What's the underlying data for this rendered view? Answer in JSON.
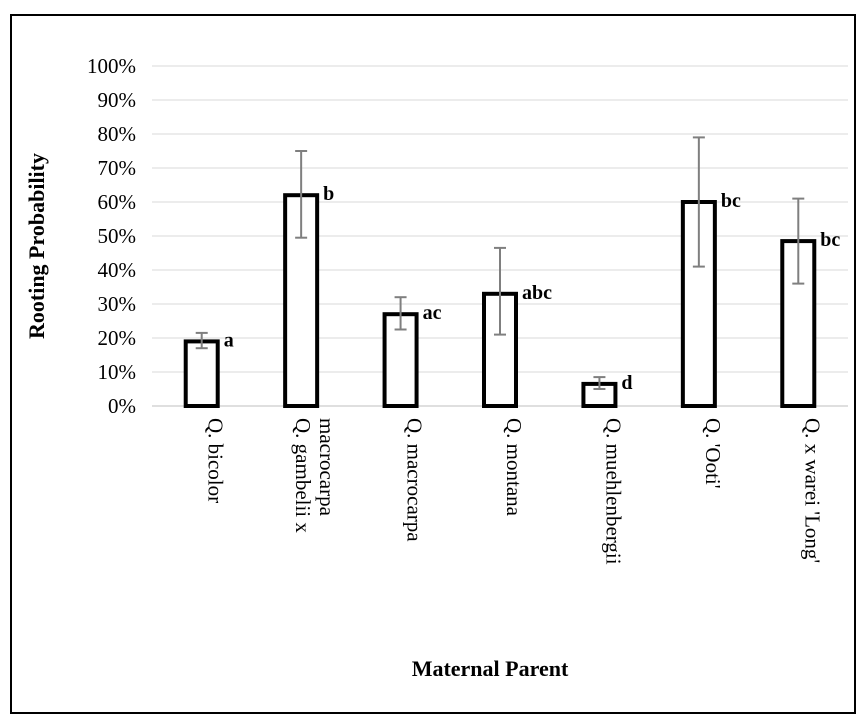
{
  "chart_data": {
    "type": "bar",
    "title": "",
    "xlabel": "Maternal Parent",
    "ylabel": "Rooting Probability",
    "ylim": [
      0,
      100
    ],
    "y_ticks": [
      "0%",
      "10%",
      "20%",
      "30%",
      "40%",
      "50%",
      "60%",
      "70%",
      "80%",
      "90%",
      "100%"
    ],
    "grid": true,
    "categories": [
      [
        "Q. bicolor"
      ],
      [
        "Q. gambelii x",
        "macrocarpa"
      ],
      [
        "Q. macrocarpa"
      ],
      [
        "Q. montana"
      ],
      [
        "Q. muehlenbergii"
      ],
      [
        "Q. 'Ooti'"
      ],
      [
        "Q. x warei 'Long'"
      ]
    ],
    "values": [
      19,
      62,
      27,
      33,
      6.5,
      60,
      48.5
    ],
    "error_low": [
      17,
      49.5,
      22.5,
      21,
      5,
      41,
      36
    ],
    "error_high": [
      21.5,
      75,
      32,
      46.5,
      8.5,
      79,
      61
    ],
    "letters": [
      "a",
      "b",
      "ac",
      "abc",
      "d",
      "bc",
      "bc"
    ],
    "colors": {
      "bar_fill": "#ffffff",
      "bar_stroke": "#000000",
      "error_bar": "#7f7f7f",
      "grid": "#d9d9d9"
    }
  }
}
